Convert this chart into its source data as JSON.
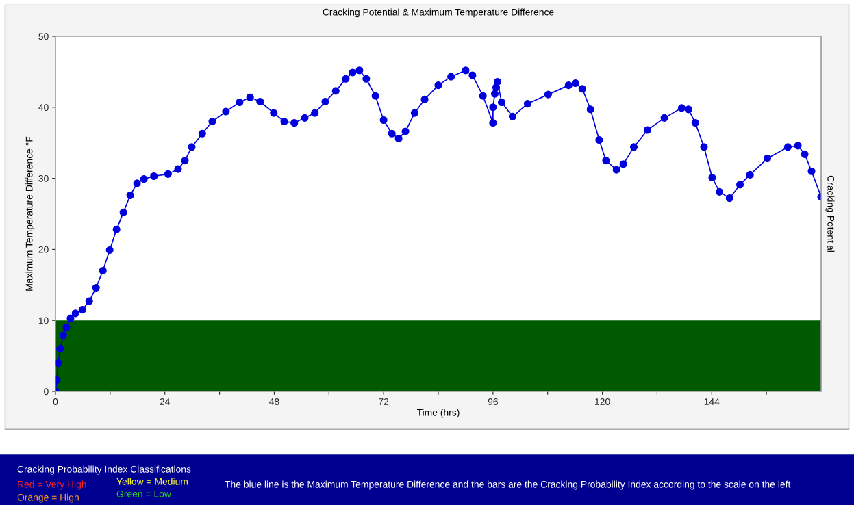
{
  "chart_data": {
    "type": "line",
    "title": "Cracking Potential & Maximum Temperature Difference",
    "xlabel": "Time (hrs)",
    "ylabel": "Maximum Temperature Difference °F",
    "y2label": "Cracking Potential",
    "x": [
      0,
      0.3,
      0.6,
      1,
      1.7,
      2.4,
      3.3,
      4.4,
      5.9,
      7.4,
      8.9,
      10.4,
      11.9,
      13.4,
      14.9,
      16.4,
      17.9,
      19.4,
      21.6,
      24.7,
      26.9,
      28.4,
      29.9,
      32.2,
      34.4,
      37.4,
      40.4,
      42.7,
      44.9,
      47.9,
      50.2,
      52.4,
      54.7,
      56.9,
      59.2,
      61.5,
      63.7,
      65.2,
      66.7,
      68.2,
      70.2,
      72,
      73.8,
      75.3,
      76.8,
      78.8,
      81,
      84,
      86.8,
      90,
      91.5,
      93.8,
      96,
      96,
      96.4,
      96.7,
      97,
      97.9,
      100.3,
      103.6,
      108.1,
      112.6,
      114.1,
      115.6,
      117.4,
      119.3,
      120.8,
      123.1,
      124.6,
      126.9,
      129.9,
      133.6,
      137.4,
      138.9,
      140.4,
      142.3,
      144.1,
      145.7,
      147.9,
      150.2,
      152.4,
      156.2,
      160.7,
      162.9,
      164.4,
      165.9,
      168
    ],
    "series": [
      {
        "color": "#0000dd",
        "values": [
          0,
          1.6,
          4,
          6,
          7.9,
          9,
          10.3,
          11,
          11.5,
          12.7,
          14.6,
          17,
          19.9,
          22.8,
          25.2,
          27.6,
          29.3,
          29.9,
          30.3,
          30.6,
          31.3,
          32.5,
          34.4,
          36.3,
          38,
          39.4,
          40.7,
          41.4,
          40.8,
          39.2,
          38,
          37.8,
          38.5,
          39.2,
          40.8,
          42.3,
          44,
          44.9,
          45.2,
          44,
          41.6,
          38.2,
          36.3,
          35.6,
          36.6,
          39.2,
          41.1,
          43.1,
          44.3,
          45.2,
          44.5,
          41.6,
          37.8,
          40,
          41.9,
          42.8,
          43.6,
          40.7,
          38.7,
          40.5,
          41.8,
          43.1,
          43.4,
          42.6,
          39.7,
          35.4,
          32.5,
          31.2,
          32,
          34.4,
          36.8,
          38.5,
          39.9,
          39.7,
          37.8,
          34.4,
          30.1,
          28.1,
          27.2,
          29.1,
          30.5,
          32.8,
          34.4,
          34.6,
          33.4,
          31,
          27.4
        ]
      }
    ],
    "marker": "circle",
    "xlim": [
      0,
      168
    ],
    "xticks": [
      0,
      {
        "value": 12,
        "label": null
      },
      24,
      {
        "value": 36,
        "label": null
      },
      48,
      {
        "value": 60,
        "label": null
      },
      72,
      {
        "value": 84,
        "label": null
      },
      96,
      {
        "value": 108,
        "label": null
      },
      120,
      {
        "value": 132,
        "label": null
      },
      144,
      {
        "value": 156,
        "label": null
      }
    ],
    "ylim": [
      0,
      50
    ],
    "yticks": [
      0,
      10,
      20,
      30,
      40,
      50
    ],
    "bands": [
      {
        "axis": "y",
        "from": 0,
        "to": 10,
        "color": "#005a00"
      }
    ],
    "grid": false,
    "legend": false,
    "annotations": [
      "Cracking Probability Index Classifications",
      "Red = Very High",
      "Yellow = Medium",
      "Orange = High",
      "Green = Low",
      "The blue line is the Maximum Temperature Difference and the bars are the Cracking Probability Index according to the scale on the left"
    ]
  }
}
